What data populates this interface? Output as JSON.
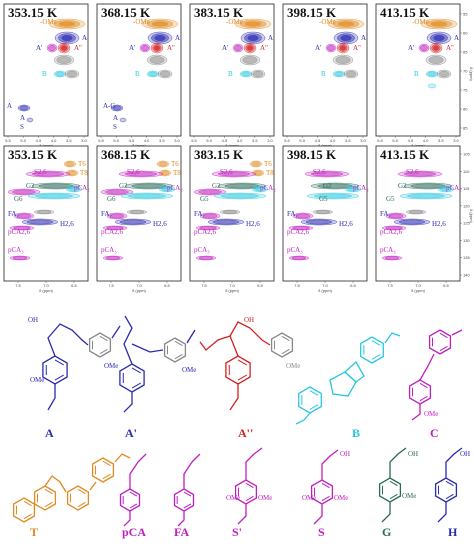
{
  "temperatures": [
    "353.15 K",
    "368.15 K",
    "383.15 K",
    "398.15 K",
    "413.15 K"
  ],
  "top_axis": {
    "x_ticks": [
      "5.5",
      "5.0",
      "4.5",
      "4.0",
      "3.5",
      "3.0"
    ],
    "y_ticks": [
      "55",
      "60",
      "65",
      "70",
      "75",
      "80",
      "85"
    ],
    "x_label": "δ (ppm)",
    "y_label": "δ (ppm)"
  },
  "bottom_axis": {
    "x_ticks": [
      "7.5",
      "7.0",
      "6.5"
    ],
    "y_ticks": [
      "105",
      "110",
      "115",
      "120",
      "125",
      "130",
      "135",
      "140"
    ],
    "x_label": "δ (ppm)",
    "y_label": "δ (ppm)"
  },
  "top_labels": {
    "ome": "-OMe",
    "a_gamma": "Aγ",
    "a_alpha": "A'γ",
    "a_dblprime": "A\"",
    "b_gamma": "Bγ",
    "a_beta": "Aβ-G",
    "s_beta": "S"
  },
  "bottom_labels": {
    "t6": "T6",
    "t8": "T8",
    "s26": "S2,6",
    "g2": "G2",
    "pca": "pCA₂",
    "g6": "G6",
    "g5": "G5",
    "fa": "FA₂",
    "h26": "H2,6",
    "pca26": "pCA2,6",
    "pca3": "pCA₃"
  },
  "structures": {
    "labels": [
      "A",
      "A'",
      "A''",
      "B",
      "C",
      "T",
      "pCA",
      "FA",
      "S'",
      "S",
      "G",
      "H"
    ],
    "ome": "OMe",
    "oh": "OH"
  },
  "colors": {
    "blue": "#2a2ab0",
    "red": "#d42020",
    "cyan": "#28c8e0",
    "magenta": "#c01ec0",
    "orange": "#e08a20",
    "teal": "#2a6a5a",
    "gray": "#888888"
  }
}
